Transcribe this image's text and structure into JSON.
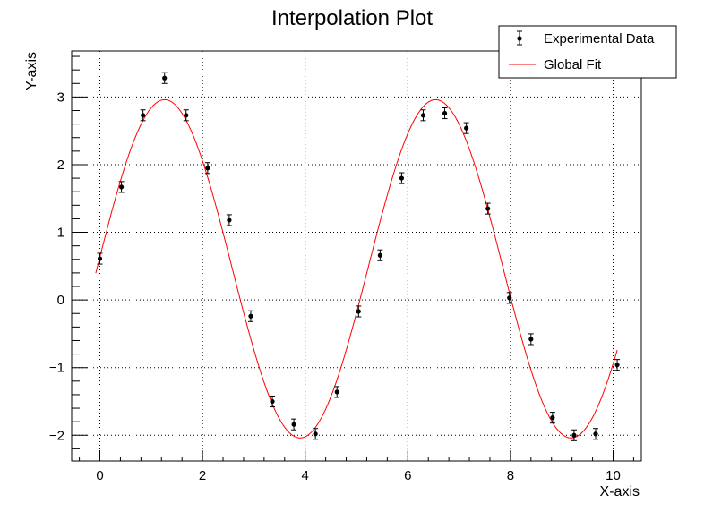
{
  "chart_data": {
    "type": "scatter",
    "title": "Interpolation Plot",
    "xlabel": "X-axis",
    "ylabel": "Y-axis",
    "xlim": [
      -0.55,
      10.55
    ],
    "ylim": [
      -2.38,
      3.68
    ],
    "x_ticks": [
      0,
      2,
      4,
      6,
      8,
      10
    ],
    "x_tick_labels": [
      "0",
      "2",
      "4",
      "6",
      "8",
      "10"
    ],
    "y_ticks": [
      -2,
      -1,
      0,
      1,
      2,
      3
    ],
    "y_tick_labels": [
      "−2",
      "−1",
      "0",
      "1",
      "2",
      "3"
    ],
    "grid": true,
    "legend_position": "top-right",
    "legend": [
      {
        "label": "Experimental Data",
        "kind": "marker-errorbar",
        "color": "#000000"
      },
      {
        "label": "Global Fit",
        "kind": "line",
        "color": "#ff0000"
      }
    ],
    "series": [
      {
        "name": "Experimental Data",
        "kind": "points",
        "color": "#000000",
        "x": [
          0.0,
          0.42,
          0.84,
          1.26,
          1.68,
          2.1,
          2.52,
          2.94,
          3.36,
          3.78,
          4.2,
          4.62,
          5.04,
          5.46,
          5.88,
          6.3,
          6.72,
          7.14,
          7.56,
          7.98,
          8.4,
          8.82,
          9.24,
          9.66,
          10.08
        ],
        "y": [
          0.61,
          1.67,
          2.73,
          3.28,
          2.73,
          1.95,
          1.18,
          -0.24,
          -1.5,
          -1.84,
          -1.98,
          -1.36,
          -0.17,
          0.66,
          1.8,
          2.73,
          2.76,
          2.54,
          1.35,
          0.03,
          -0.58,
          -1.74,
          -2.0,
          -1.98,
          -0.96
        ],
        "y_error": [
          0.08,
          0.08,
          0.08,
          0.08,
          0.08,
          0.08,
          0.08,
          0.08,
          0.08,
          0.08,
          0.08,
          0.08,
          0.08,
          0.08,
          0.08,
          0.08,
          0.08,
          0.08,
          0.08,
          0.08,
          0.08,
          0.08,
          0.08,
          0.08,
          0.08
        ]
      },
      {
        "name": "Global Fit",
        "kind": "line",
        "color": "#ff0000",
        "function": "y = 2.5*sin(1.19*x + 0.07) + 0.46",
        "x_range": [
          -0.08,
          10.08
        ]
      }
    ]
  }
}
